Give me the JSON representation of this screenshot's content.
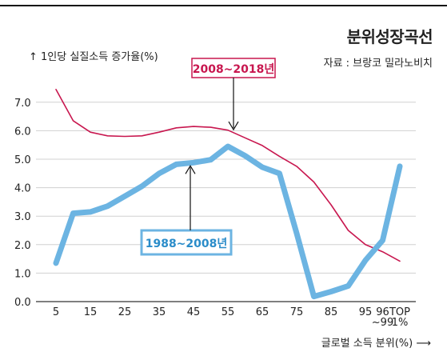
{
  "title": "분위성장곡선",
  "source": "자료 : 브랑코 밀라노비치",
  "chart_data": {
    "type": "line",
    "ylabel": "1인당 실질소득 증가율(%)",
    "xlabel": "글로벌 소득 분위(%)",
    "ylim": [
      0,
      7.5
    ],
    "yticks": [
      "0.0",
      "1.0",
      "2.0",
      "3.0",
      "4.0",
      "5.0",
      "6.0",
      "7.0"
    ],
    "categories": [
      "5",
      "10",
      "15",
      "20",
      "25",
      "30",
      "35",
      "40",
      "45",
      "50",
      "55",
      "60",
      "65",
      "70",
      "75",
      "80",
      "85",
      "90",
      "95",
      "96~99",
      "TOP 1%"
    ],
    "xtick_labels": [
      "5",
      "15",
      "25",
      "35",
      "45",
      "55",
      "65",
      "75",
      "85",
      "95",
      "96\n~99",
      "TOP\n1%"
    ],
    "series": [
      {
        "name": "2008~2018년",
        "color": "#c8174f",
        "values": [
          7.45,
          6.35,
          5.95,
          5.82,
          5.8,
          5.82,
          5.95,
          6.1,
          6.15,
          6.12,
          6.02,
          5.75,
          5.48,
          5.1,
          4.75,
          4.2,
          3.4,
          2.5,
          2.0,
          1.75,
          1.42
        ]
      },
      {
        "name": "1988~2008년",
        "color": "#6cb4e2",
        "values": [
          1.35,
          3.1,
          3.15,
          3.35,
          3.7,
          4.05,
          4.5,
          4.82,
          4.88,
          4.98,
          5.45,
          5.12,
          4.72,
          4.5,
          2.4,
          0.18,
          0.35,
          0.55,
          1.45,
          2.15,
          4.75
        ]
      }
    ],
    "annotations": [
      "2008~2018년",
      "1988~2008년"
    ],
    "grid": "horizontal",
    "legend": "inline-labels"
  }
}
